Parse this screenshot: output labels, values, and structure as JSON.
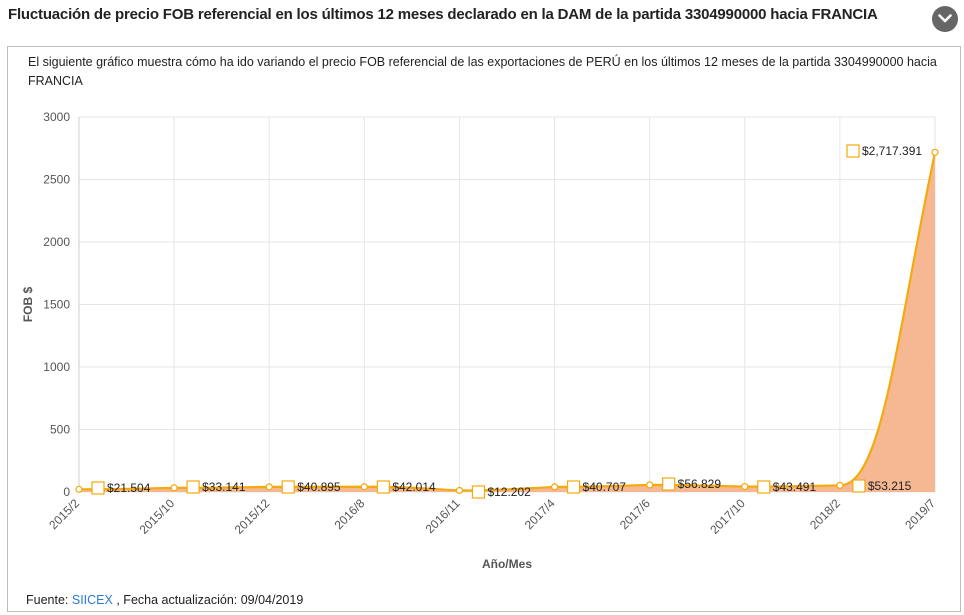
{
  "header": {
    "title": "Fluctuación de precio FOB referencial en los últimos 12 meses declarado en la DAM de la partida 3304990000 hacia FRANCIA"
  },
  "description": "El siguiente gráfico muestra cómo ha ido variando el precio FOB referencial de las exportaciones de PERÚ en los últimos 12 meses de la partida 3304990000 hacia FRANCIA",
  "footer": {
    "source_label": "Fuente:",
    "source_link": "SIICEX",
    "updated": ", Fecha actualización: 09/04/2019"
  },
  "colors": {
    "line": "#f4a90c",
    "area": "#f5b48c",
    "marker_box": "#f4a90c",
    "grid": "#e6e6e6",
    "collapse_button": "#666666"
  },
  "chart_data": {
    "type": "area",
    "xlabel": "Año/Mes",
    "ylabel": "FOB $",
    "ylim": [
      0,
      3000
    ],
    "yticks": [
      "0",
      "500",
      "1000",
      "1500",
      "2000",
      "2500",
      "3000"
    ],
    "categories": [
      "2015/2",
      "2015/10",
      "2015/12",
      "2016/8",
      "2016/11",
      "2017/4",
      "2017/6",
      "2017/10",
      "2018/2",
      "2019/7"
    ],
    "values": [
      21.504,
      33.141,
      40.895,
      42.014,
      12.202,
      40.707,
      56.829,
      43.491,
      53.215,
      2717.391
    ],
    "data_labels": [
      "$21.504",
      "$33.141",
      "$40.895",
      "$42.014",
      "$12.202",
      "$40.707",
      "$56.829",
      "$43.491",
      "$53.215",
      "$2,717.391"
    ],
    "grid": true,
    "legend": "none"
  }
}
